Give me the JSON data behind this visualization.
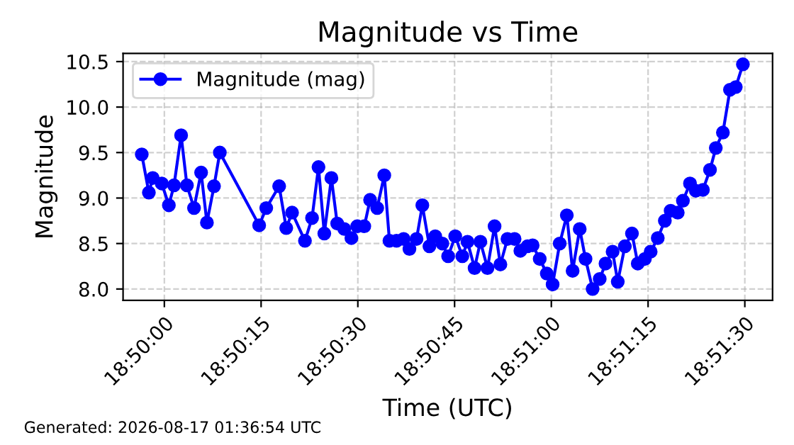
{
  "chart_data": {
    "type": "line",
    "title": "Magnitude vs Time",
    "xlabel": "Time (UTC)",
    "ylabel": "Magnitude",
    "x": [
      "2026-08-17T18:49:56.5",
      "2026-08-17T18:49:57.6",
      "2026-08-17T18:49:58.2",
      "2026-08-17T18:49:59.6",
      "2026-08-17T18:50:00.7",
      "2026-08-17T18:50:01.5",
      "2026-08-17T18:50:02.6",
      "2026-08-17T18:50:03.5",
      "2026-08-17T18:50:04.6",
      "2026-08-17T18:50:05.7",
      "2026-08-17T18:50:06.6",
      "2026-08-17T18:50:07.7",
      "2026-08-17T18:50:08.6",
      "2026-08-17T18:50:14.7",
      "2026-08-17T18:50:15.8",
      "2026-08-17T18:50:17.8",
      "2026-08-17T18:50:18.9",
      "2026-08-17T18:50:19.8",
      "2026-08-17T18:50:21.8",
      "2026-08-17T18:50:22.9",
      "2026-08-17T18:50:23.9",
      "2026-08-17T18:50:24.8",
      "2026-08-17T18:50:25.9",
      "2026-08-17T18:50:26.8",
      "2026-08-17T18:50:27.9",
      "2026-08-17T18:50:29.0",
      "2026-08-17T18:50:29.9",
      "2026-08-17T18:50:31.0",
      "2026-08-17T18:50:31.9",
      "2026-08-17T18:50:33.0",
      "2026-08-17T18:50:34.1",
      "2026-08-17T18:50:34.9",
      "2026-08-17T18:50:36.0",
      "2026-08-17T18:50:37.1",
      "2026-08-17T18:50:38.0",
      "2026-08-17T18:50:39.1",
      "2026-08-17T18:50:40.0",
      "2026-08-17T18:50:41.1",
      "2026-08-17T18:50:42.0",
      "2026-08-17T18:50:43.1",
      "2026-08-17T18:50:44.0",
      "2026-08-17T18:50:45.1",
      "2026-08-17T18:50:46.2",
      "2026-08-17T18:50:47.0",
      "2026-08-17T18:50:48.1",
      "2026-08-17T18:50:49.0",
      "2026-08-17T18:50:50.1",
      "2026-08-17T18:50:51.2",
      "2026-08-17T18:50:52.1",
      "2026-08-17T18:50:53.2",
      "2026-08-17T18:50:54.3",
      "2026-08-17T18:50:55.2",
      "2026-08-17T18:50:56.3",
      "2026-08-17T18:50:57.1",
      "2026-08-17T18:50:58.2",
      "2026-08-17T18:50:59.3",
      "2026-08-17T18:51:00.2",
      "2026-08-17T18:51:01.3",
      "2026-08-17T18:51:02.4",
      "2026-08-17T18:51:03.3",
      "2026-08-17T18:51:04.4",
      "2026-08-17T18:51:05.3",
      "2026-08-17T18:51:06.4",
      "2026-08-17T18:51:07.5",
      "2026-08-17T18:51:08.4",
      "2026-08-17T18:51:09.5",
      "2026-08-17T18:51:10.3",
      "2026-08-17T18:51:11.4",
      "2026-08-17T18:51:12.5",
      "2026-08-17T18:51:13.4",
      "2026-08-17T18:51:14.5",
      "2026-08-17T18:51:15.4",
      "2026-08-17T18:51:16.5",
      "2026-08-17T18:51:17.6",
      "2026-08-17T18:51:18.5",
      "2026-08-17T18:51:19.6",
      "2026-08-17T18:51:20.4",
      "2026-08-17T18:51:21.5",
      "2026-08-17T18:51:22.4",
      "2026-08-17T18:51:23.5",
      "2026-08-17T18:51:24.6",
      "2026-08-17T18:51:25.5",
      "2026-08-17T18:51:26.6",
      "2026-08-17T18:51:27.7",
      "2026-08-17T18:51:28.6",
      "2026-08-17T18:51:29.7"
    ],
    "series": [
      {
        "name": "Magnitude (mag)",
        "color": "#0000ff",
        "values": [
          9.48,
          9.06,
          9.22,
          9.16,
          8.92,
          9.14,
          9.69,
          9.14,
          8.89,
          9.28,
          8.73,
          9.13,
          9.5,
          8.7,
          8.89,
          9.13,
          8.67,
          8.84,
          8.53,
          8.78,
          9.34,
          8.61,
          9.22,
          8.72,
          8.66,
          8.56,
          8.69,
          8.69,
          8.98,
          8.89,
          9.25,
          8.53,
          8.53,
          8.55,
          8.44,
          8.55,
          8.92,
          8.47,
          8.58,
          8.5,
          8.36,
          8.58,
          8.36,
          8.52,
          8.23,
          8.52,
          8.23,
          8.69,
          8.27,
          8.55,
          8.55,
          8.42,
          8.47,
          8.48,
          8.33,
          8.17,
          8.05,
          8.5,
          8.81,
          8.2,
          8.66,
          8.33,
          8.0,
          8.11,
          8.28,
          8.41,
          8.08,
          8.47,
          8.61,
          8.28,
          8.33,
          8.41,
          8.56,
          8.75,
          8.86,
          8.84,
          8.97,
          9.16,
          9.08,
          9.09,
          9.31,
          9.55,
          9.72,
          10.19,
          10.22,
          10.47
        ]
      }
    ],
    "xlim": [
      "2026-08-17T18:49:53.6",
      "2026-08-17T18:51:34.3"
    ],
    "xticks": [
      {
        "value": "2026-08-17T18:50:00",
        "label": "18:50:00"
      },
      {
        "value": "2026-08-17T18:50:15",
        "label": "18:50:15"
      },
      {
        "value": "2026-08-17T18:50:30",
        "label": "18:50:30"
      },
      {
        "value": "2026-08-17T18:50:45",
        "label": "18:50:45"
      },
      {
        "value": "2026-08-17T18:51:00",
        "label": "18:51:00"
      },
      {
        "value": "2026-08-17T18:51:15",
        "label": "18:51:15"
      },
      {
        "value": "2026-08-17T18:51:30",
        "label": "18:51:30"
      }
    ],
    "ylim": [
      7.875,
      10.59
    ],
    "yticks": [
      {
        "value": 8,
        "label": "8.0"
      },
      8.5,
      {
        "value": 9,
        "label": "9.0"
      },
      9.5,
      {
        "value": 10,
        "label": "10.0"
      },
      10.5
    ],
    "grid": true,
    "legend": "top left",
    "marker": "circle",
    "line_style": "solid",
    "annotations": [
      "Generated: 2026-08-17 01:36:54 UTC"
    ]
  }
}
